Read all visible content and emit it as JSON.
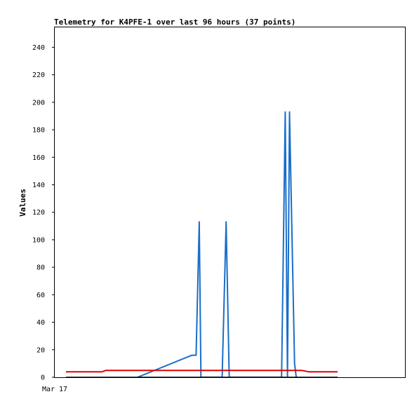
{
  "chart_data": {
    "type": "line",
    "title": "Telemetry for K4PFE-1 over last 96 hours (37 points)",
    "xlabel": "",
    "ylabel": "Values",
    "x_tick_labels": [
      "Mar 17"
    ],
    "ylim": [
      0,
      255
    ],
    "y_ticks": [
      0,
      20,
      40,
      60,
      80,
      100,
      120,
      140,
      160,
      180,
      200,
      220,
      240
    ],
    "xlim": [
      0,
      96
    ],
    "grid": false,
    "series": [
      {
        "color": "#1a6ec8",
        "points": [
          [
            25.3,
            0
          ],
          [
            44.5,
            16
          ],
          [
            46.0,
            16
          ],
          [
            47.1,
            113
          ],
          [
            47.7,
            0
          ],
          [
            55.2,
            0
          ],
          [
            56.6,
            113
          ],
          [
            57.7,
            0
          ],
          [
            76.2,
            0
          ],
          [
            77.5,
            193
          ],
          [
            78.3,
            0
          ],
          [
            79.0,
            193
          ],
          [
            80.8,
            10
          ],
          [
            81.4,
            0
          ]
        ]
      },
      {
        "color": "#e00000",
        "points": [
          [
            0,
            4
          ],
          [
            12.8,
            4
          ],
          [
            14.1,
            5
          ],
          [
            83.3,
            5
          ],
          [
            85.7,
            4
          ],
          [
            96,
            4
          ]
        ]
      },
      {
        "color": "#000000",
        "points": [
          [
            0,
            0
          ],
          [
            96,
            0
          ]
        ]
      }
    ]
  }
}
